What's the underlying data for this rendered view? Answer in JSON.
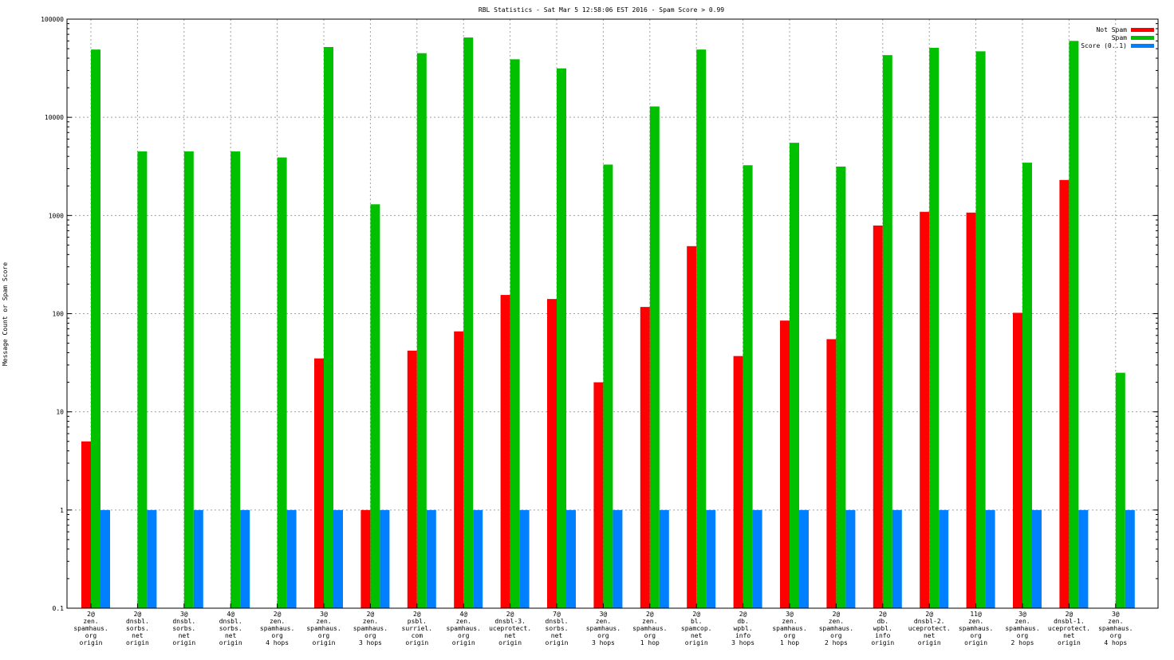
{
  "chart_data": {
    "type": "bar",
    "title": "RBL Statistics - Sat Mar  5 12:58:06 EST 2016 - Spam Score > 0.99",
    "xlabel": "",
    "ylabel": "Message Count or Spam Score",
    "yscale": "log",
    "ylim": [
      0.1,
      100000
    ],
    "yticks": [
      "0.1",
      "1",
      "10",
      "100",
      "1000",
      "10000",
      "100000"
    ],
    "grid": true,
    "legend_position": "top-right",
    "categories": [
      [
        "2@",
        "zen.",
        "spamhaus.",
        "org",
        "origin"
      ],
      [
        "2@",
        "dnsbl.",
        "sorbs.",
        "net",
        "origin"
      ],
      [
        "3@",
        "dnsbl.",
        "sorbs.",
        "net",
        "origin"
      ],
      [
        "4@",
        "dnsbl.",
        "sorbs.",
        "net",
        "origin"
      ],
      [
        "2@",
        "zen.",
        "spamhaus.",
        "org",
        "4 hops"
      ],
      [
        "3@",
        "zen.",
        "spamhaus.",
        "org",
        "origin"
      ],
      [
        "2@",
        "zen.",
        "spamhaus.",
        "org",
        "3 hops"
      ],
      [
        "2@",
        "psbl.",
        "surriel.",
        "com",
        "origin"
      ],
      [
        "4@",
        "zen.",
        "spamhaus.",
        "org",
        "origin"
      ],
      [
        "2@",
        "dnsbl-3.",
        "uceprotect.",
        "net",
        "origin"
      ],
      [
        "7@",
        "dnsbl.",
        "sorbs.",
        "net",
        "origin"
      ],
      [
        "3@",
        "zen.",
        "spamhaus.",
        "org",
        "3 hops"
      ],
      [
        "2@",
        "zen.",
        "spamhaus.",
        "org",
        "1 hop"
      ],
      [
        "2@",
        "bl.",
        "spamcop.",
        "net",
        "origin"
      ],
      [
        "2@",
        "db.",
        "wpbl.",
        "info",
        "3 hops"
      ],
      [
        "3@",
        "zen.",
        "spamhaus.",
        "org",
        "1 hop"
      ],
      [
        "2@",
        "zen.",
        "spamhaus.",
        "org",
        "2 hops"
      ],
      [
        "2@",
        "db.",
        "wpbl.",
        "info",
        "origin"
      ],
      [
        "2@",
        "dnsbl-2.",
        "uceprotect.",
        "net",
        "origin"
      ],
      [
        "11@",
        "zen.",
        "spamhaus.",
        "org",
        "origin"
      ],
      [
        "3@",
        "zen.",
        "spamhaus.",
        "org",
        "2 hops"
      ],
      [
        "2@",
        "dnsbl-1.",
        "uceprotect.",
        "net",
        "origin"
      ],
      [
        "3@",
        "zen.",
        "spamhaus.",
        "org",
        "4 hops"
      ]
    ],
    "series": [
      {
        "name": "Not Spam",
        "color": "#ff0000",
        "values": [
          5,
          0,
          0,
          0,
          0,
          35,
          1,
          42,
          66,
          155,
          141,
          20,
          117,
          487,
          37,
          85,
          55,
          790,
          1090,
          1070,
          102,
          2300,
          0
        ]
      },
      {
        "name": "Spam",
        "color": "#00c000",
        "values": [
          49000,
          4500,
          4500,
          4500,
          3900,
          52000,
          1300,
          45000,
          65000,
          39000,
          31500,
          3300,
          12900,
          49000,
          3250,
          5500,
          3150,
          43000,
          51000,
          47000,
          3450,
          60000,
          25
        ]
      },
      {
        "name": "Score (0..1)",
        "color": "#0080ff",
        "values": [
          1,
          1,
          1,
          1,
          1,
          1,
          1,
          1,
          1,
          1,
          1,
          1,
          1,
          1,
          1,
          1,
          1,
          1,
          1,
          1,
          1,
          1,
          1
        ]
      }
    ]
  }
}
